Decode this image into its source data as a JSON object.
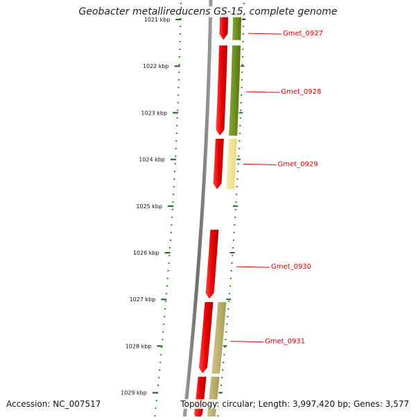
{
  "title": "Geobacter metallireducens GS-15, complete genome",
  "footer": {
    "accession": "Accession: NC_007517",
    "topology": "Topology: circular; Length: 3,997,420 bp; Genes: 3,577"
  },
  "colors": {
    "backbone": "#7a7a7a",
    "tick": "#1f6a1f",
    "dots": "#2f8a2f",
    "gene_red": "#e60000",
    "olive": "#6f8f1f",
    "pale_yellow": "#f2e69a",
    "khaki": "#b7ae6a",
    "label_red": "#cc0000"
  },
  "scale": {
    "unit": "kbp",
    "ticks": [
      {
        "kbp": 1021,
        "label": "1021 kbp"
      },
      {
        "kbp": 1022,
        "label": "1022 kbp"
      },
      {
        "kbp": 1023,
        "label": "1023 kbp"
      },
      {
        "kbp": 1024,
        "label": "1024 kbp"
      },
      {
        "kbp": 1025,
        "label": "1025 kbp"
      },
      {
        "kbp": 1026,
        "label": "1026 kbp"
      },
      {
        "kbp": 1027,
        "label": "1027 kbp"
      },
      {
        "kbp": 1028,
        "label": "1028 kbp"
      },
      {
        "kbp": 1029,
        "label": "1029 kbp"
      }
    ]
  },
  "genes": [
    {
      "name": "Gmet_0927",
      "start": 1020.9,
      "end": 1021.45
    },
    {
      "name": "Gmet_0928",
      "start": 1021.55,
      "end": 1023.5
    },
    {
      "name": "Gmet_0929",
      "start": 1023.55,
      "end": 1024.65
    },
    {
      "name": "Gmet_0930",
      "start": 1025.5,
      "end": 1027.0
    },
    {
      "name": "Gmet_0931",
      "start": 1027.05,
      "end": 1028.6
    },
    {
      "name": "",
      "start": 1028.65,
      "end": 1029.6
    }
  ],
  "features": [
    {
      "track": "olive",
      "start": 1020.8,
      "end": 1021.45
    },
    {
      "track": "olive",
      "start": 1021.55,
      "end": 1023.5
    },
    {
      "track": "pale_yellow",
      "start": 1023.55,
      "end": 1024.65
    },
    {
      "track": "khaki",
      "start": 1027.05,
      "end": 1028.6
    },
    {
      "track": "khaki",
      "start": 1028.65,
      "end": 1029.6
    }
  ],
  "gene_labels": [
    {
      "text": "Gmet_0927",
      "kbp": 1021.3
    },
    {
      "text": "Gmet_0928",
      "kbp": 1022.55
    },
    {
      "text": "Gmet_0929",
      "kbp": 1024.1
    },
    {
      "text": "Gmet_0930",
      "kbp": 1026.3
    },
    {
      "text": "Gmet_0931",
      "kbp": 1027.9
    }
  ]
}
